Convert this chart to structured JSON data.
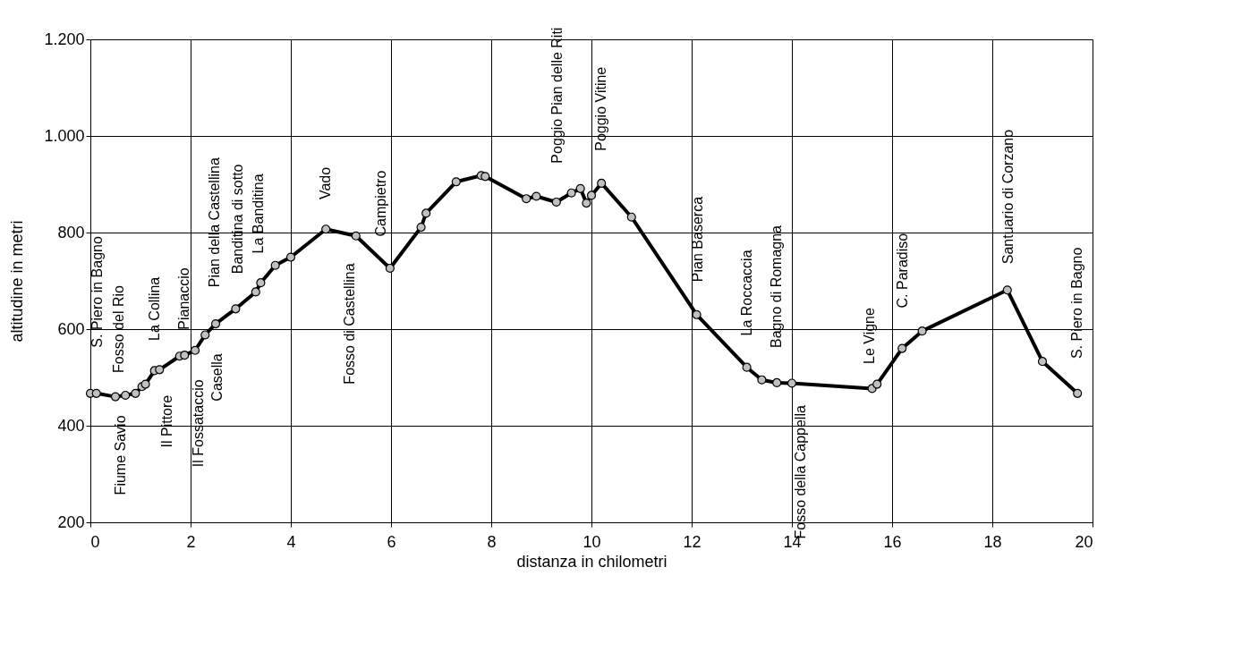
{
  "chart_data": {
    "type": "line",
    "xlabel": "distanza in chilometri",
    "ylabel": "altitudine  in metri",
    "x": [
      0,
      0.12,
      0.5,
      0.7,
      0.9,
      1.03,
      1.1,
      1.28,
      1.38,
      1.78,
      1.88,
      2.09,
      2.29,
      2.5,
      2.9,
      3.3,
      3.4,
      3.69,
      4.0,
      4.7,
      5.3,
      5.98,
      6.6,
      6.7,
      7.3,
      7.8,
      7.88,
      8.7,
      8.9,
      9.3,
      9.6,
      9.78,
      9.9,
      10.0,
      10.2,
      10.8,
      12.1,
      13.1,
      13.4,
      13.7,
      14.0,
      15.6,
      15.7,
      16.2,
      16.6,
      18.3,
      19.0,
      19.7
    ],
    "series": [
      {
        "color": "#000000",
        "values": [
          467,
          467,
          460,
          463,
          467,
          481,
          486,
          514,
          516,
          544,
          546,
          556,
          588,
          611,
          642,
          677,
          696,
          732,
          749,
          807,
          793,
          726,
          811,
          840,
          905,
          918,
          916,
          870,
          875,
          863,
          882,
          891,
          861,
          877,
          902,
          832,
          630,
          521,
          495,
          489,
          488,
          477,
          486,
          560,
          596,
          681,
          533,
          467
        ]
      }
    ],
    "xlim": [
      0,
      20
    ],
    "xticks": [
      0,
      2,
      4,
      6,
      8,
      10,
      12,
      14,
      16,
      18,
      20
    ],
    "ylim": [
      200,
      1200
    ],
    "yticks": [
      200,
      400,
      600,
      800,
      {
        "value": 1000,
        "label": "1.000"
      },
      {
        "value": 1200,
        "label": "1.200"
      }
    ],
    "grid": true,
    "marker": "circle",
    "line_style": "solid",
    "annotations": [
      "S. Piero in Bagno",
      "Fosso del Rio",
      "Fiume Savio",
      "La Collina",
      "Il Pittore",
      "Pianaccio",
      "Il Fossataccio",
      "Casella",
      "Pian della Castellina",
      "Banditina di sotto",
      "La Banditina",
      "Vado",
      "Fosso di Castellina",
      "Campietro",
      "Poggio Pian delle Riti",
      "Poggio Vitine",
      "Pian Baserca",
      "La Roccaccia",
      "Bagno di Romagna",
      "Fosso della Cappella",
      "Le Vigne",
      "C. Paradiso",
      "Santuario di Corzano",
      "S. Piero in Bagno"
    ]
  }
}
